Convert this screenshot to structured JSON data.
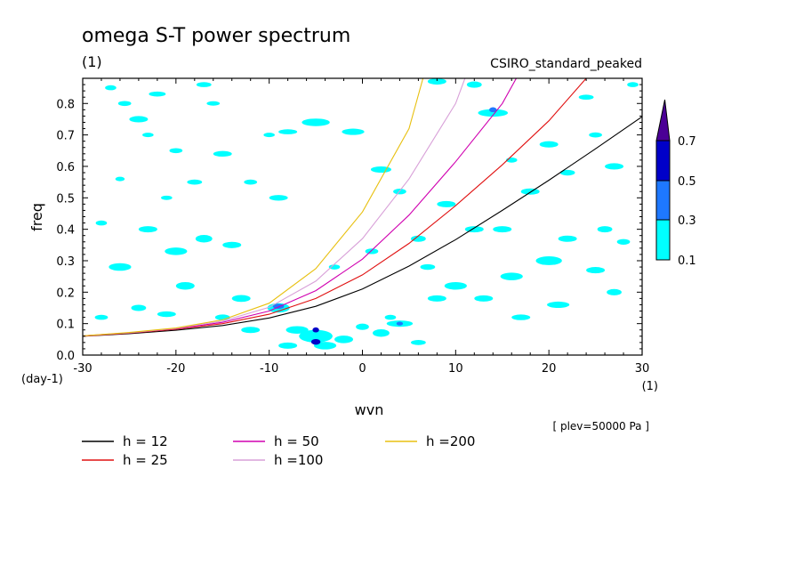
{
  "header": {
    "title": "omega S-T power spectrum",
    "units": "(1)",
    "model": "CSIRO_standard_peaked"
  },
  "chart_data": {
    "type": "line",
    "xlabel": "wvn",
    "ylabel": "freq",
    "x_unit": "(1)",
    "y_unit": "(day-1)",
    "xlim": [
      -30,
      30
    ],
    "ylim": [
      0,
      0.88
    ],
    "x_ticks": [
      "-30",
      "-20",
      "-10",
      "0",
      "10",
      "20",
      "30"
    ],
    "y_ticks": [
      "0.0",
      "0.1",
      "0.2",
      "0.3",
      "0.4",
      "0.5",
      "0.6",
      "0.7",
      "0.8"
    ],
    "annotation": "[ plev=50000 Pa ]",
    "series": [
      {
        "name": "h = 12",
        "color": "#000000",
        "points": [
          [
            -30,
            0.06
          ],
          [
            -25,
            0.068
          ],
          [
            -20,
            0.079
          ],
          [
            -15,
            0.094
          ],
          [
            -10,
            0.118
          ],
          [
            -5,
            0.155
          ],
          [
            0,
            0.21
          ],
          [
            5,
            0.283
          ],
          [
            10,
            0.367
          ],
          [
            15,
            0.46
          ],
          [
            20,
            0.556
          ],
          [
            25,
            0.656
          ],
          [
            30,
            0.758
          ]
        ]
      },
      {
        "name": "h = 25",
        "color": "#e01010",
        "points": [
          [
            -30,
            0.06
          ],
          [
            -25,
            0.07
          ],
          [
            -20,
            0.082
          ],
          [
            -15,
            0.1
          ],
          [
            -10,
            0.13
          ],
          [
            -5,
            0.18
          ],
          [
            0,
            0.255
          ],
          [
            5,
            0.355
          ],
          [
            10,
            0.475
          ],
          [
            15,
            0.605
          ],
          [
            20,
            0.745
          ],
          [
            24,
            0.88
          ]
        ]
      },
      {
        "name": "h = 50",
        "color": "#d000b0",
        "points": [
          [
            -30,
            0.061
          ],
          [
            -25,
            0.071
          ],
          [
            -20,
            0.084
          ],
          [
            -15,
            0.104
          ],
          [
            -10,
            0.14
          ],
          [
            -5,
            0.205
          ],
          [
            0,
            0.305
          ],
          [
            5,
            0.445
          ],
          [
            10,
            0.615
          ],
          [
            15,
            0.8
          ],
          [
            16.5,
            0.88
          ]
        ]
      },
      {
        "name": "h =100",
        "color": "#d8a0d8",
        "points": [
          [
            -30,
            0.061
          ],
          [
            -25,
            0.071
          ],
          [
            -20,
            0.085
          ],
          [
            -15,
            0.108
          ],
          [
            -10,
            0.152
          ],
          [
            -5,
            0.235
          ],
          [
            0,
            0.37
          ],
          [
            5,
            0.56
          ],
          [
            10,
            0.8
          ],
          [
            11,
            0.88
          ]
        ]
      },
      {
        "name": "h =200",
        "color": "#e8c010",
        "points": [
          [
            -30,
            0.061
          ],
          [
            -25,
            0.072
          ],
          [
            -20,
            0.086
          ],
          [
            -15,
            0.112
          ],
          [
            -10,
            0.165
          ],
          [
            -5,
            0.275
          ],
          [
            0,
            0.455
          ],
          [
            5,
            0.72
          ],
          [
            6.5,
            0.88
          ]
        ]
      }
    ],
    "colorbar": {
      "levels": [
        "0.1",
        "0.3",
        "0.5",
        "0.7"
      ],
      "colors": [
        "#00ffff",
        "#1e78ff",
        "#0000c8",
        "#4b0096"
      ]
    },
    "blobs_low": [
      [
        -27,
        0.85,
        0.6,
        0.008
      ],
      [
        -25.5,
        0.8,
        0.7,
        0.008
      ],
      [
        -24,
        0.75,
        1,
        0.01
      ],
      [
        -22,
        0.83,
        0.9,
        0.008
      ],
      [
        -20,
        0.65,
        0.7,
        0.008
      ],
      [
        -17,
        0.86,
        0.8,
        0.008
      ],
      [
        -16,
        0.8,
        0.7,
        0.007
      ],
      [
        -15,
        0.64,
        1,
        0.009
      ],
      [
        -10,
        0.7,
        0.6,
        0.007
      ],
      [
        -8,
        0.71,
        1,
        0.008
      ],
      [
        -5,
        0.74,
        1.5,
        0.012
      ],
      [
        -1,
        0.71,
        1.2,
        0.01
      ],
      [
        2,
        0.59,
        1.1,
        0.01
      ],
      [
        4,
        0.52,
        0.7,
        0.009
      ],
      [
        -18,
        0.55,
        0.8,
        0.008
      ],
      [
        -21,
        0.5,
        0.6,
        0.007
      ],
      [
        -26,
        0.56,
        0.5,
        0.007
      ],
      [
        -23,
        0.7,
        0.6,
        0.007
      ],
      [
        -12,
        0.55,
        0.7,
        0.008
      ],
      [
        -9,
        0.5,
        1,
        0.009
      ],
      [
        -17,
        0.37,
        0.9,
        0.012
      ],
      [
        -20,
        0.33,
        1.2,
        0.012
      ],
      [
        -14,
        0.35,
        1,
        0.01
      ],
      [
        -23,
        0.4,
        1,
        0.01
      ],
      [
        -28,
        0.42,
        0.6,
        0.008
      ],
      [
        -19,
        0.22,
        1,
        0.012
      ],
      [
        -26,
        0.28,
        1.2,
        0.012
      ],
      [
        -24,
        0.15,
        0.8,
        0.01
      ],
      [
        -21,
        0.13,
        1,
        0.009
      ],
      [
        -28,
        0.12,
        0.7,
        0.008
      ],
      [
        -15,
        0.12,
        0.8,
        0.009
      ],
      [
        -13,
        0.18,
        1,
        0.011
      ],
      [
        -9,
        0.15,
        1.2,
        0.015
      ],
      [
        -12,
        0.08,
        1,
        0.01
      ],
      [
        -7,
        0.08,
        1.2,
        0.012
      ],
      [
        -5,
        0.06,
        1.8,
        0.02
      ],
      [
        -4,
        0.03,
        1.2,
        0.012
      ],
      [
        -8,
        0.03,
        1,
        0.01
      ],
      [
        -2,
        0.05,
        1,
        0.012
      ],
      [
        0,
        0.09,
        0.7,
        0.01
      ],
      [
        2,
        0.07,
        0.9,
        0.012
      ],
      [
        4,
        0.1,
        1.4,
        0.01
      ],
      [
        6,
        0.04,
        0.8,
        0.008
      ],
      [
        3,
        0.12,
        0.6,
        0.008
      ],
      [
        8,
        0.18,
        1,
        0.01
      ],
      [
        10,
        0.22,
        1.2,
        0.012
      ],
      [
        13,
        0.18,
        1,
        0.01
      ],
      [
        16,
        0.25,
        1.2,
        0.012
      ],
      [
        20,
        0.3,
        1.4,
        0.014
      ],
      [
        22,
        0.37,
        1,
        0.01
      ],
      [
        25,
        0.27,
        1,
        0.01
      ],
      [
        27,
        0.2,
        0.8,
        0.01
      ],
      [
        17,
        0.12,
        1,
        0.009
      ],
      [
        21,
        0.16,
        1.2,
        0.01
      ],
      [
        26,
        0.4,
        0.8,
        0.01
      ],
      [
        28,
        0.36,
        0.7,
        0.009
      ],
      [
        15,
        0.4,
        1,
        0.01
      ],
      [
        12,
        0.4,
        1,
        0.01
      ],
      [
        9,
        0.48,
        1,
        0.01
      ],
      [
        6,
        0.37,
        0.8,
        0.01
      ],
      [
        18,
        0.52,
        1,
        0.01
      ],
      [
        22,
        0.58,
        0.8,
        0.009
      ],
      [
        27,
        0.6,
        1,
        0.01
      ],
      [
        25,
        0.7,
        0.7,
        0.008
      ],
      [
        20,
        0.67,
        1,
        0.01
      ],
      [
        14,
        0.77,
        1.6,
        0.012
      ],
      [
        12,
        0.86,
        0.8,
        0.01
      ],
      [
        8,
        0.87,
        1,
        0.01
      ],
      [
        29,
        0.86,
        0.6,
        0.008
      ],
      [
        24,
        0.82,
        0.8,
        0.008
      ],
      [
        16,
        0.62,
        0.6,
        0.008
      ],
      [
        1,
        0.33,
        0.7,
        0.009
      ],
      [
        -3,
        0.28,
        0.6,
        0.008
      ],
      [
        7,
        0.28,
        0.8,
        0.009
      ]
    ],
    "blobs_high": [
      [
        -5,
        0.08,
        0.35,
        0.008
      ],
      [
        -5,
        0.042,
        0.5,
        0.009
      ],
      [
        14,
        0.78,
        0.4,
        0.008
      ],
      [
        4,
        0.1,
        0.35,
        0.006
      ],
      [
        -9,
        0.155,
        0.6,
        0.008
      ]
    ]
  },
  "legend_entries": [
    {
      "label": "h = 12",
      "color": "#000000"
    },
    {
      "label": "h = 25",
      "color": "#e01010"
    },
    {
      "label": "h = 50",
      "color": "#d000b0"
    },
    {
      "label": "h =100",
      "color": "#d8a0d8"
    },
    {
      "label": "h =200",
      "color": "#e8c010"
    }
  ]
}
